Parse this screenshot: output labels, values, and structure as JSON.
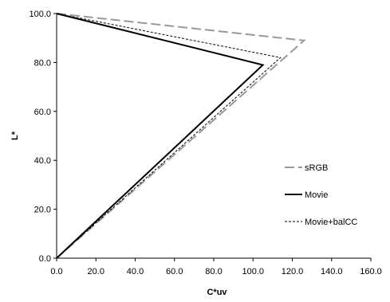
{
  "chart_data": {
    "type": "line",
    "xlabel": "C*uv",
    "ylabel": "L*",
    "xlim": [
      0,
      160
    ],
    "ylim": [
      0,
      100
    ],
    "x_ticks": [
      "0.0",
      "20.0",
      "40.0",
      "60.0",
      "80.0",
      "100.0",
      "120.0",
      "140.0",
      "160.0"
    ],
    "y_ticks": [
      "0.0",
      "20.0",
      "40.0",
      "60.0",
      "80.0",
      "100.0"
    ],
    "grid": false,
    "legend_position": "right",
    "series": [
      {
        "name": "sRGB",
        "color": "#999999",
        "style": "long-dash",
        "points": [
          [
            0,
            100
          ],
          [
            126,
            89
          ],
          [
            0,
            0
          ]
        ]
      },
      {
        "name": "Movie",
        "color": "#000000",
        "style": "solid",
        "points": [
          [
            0,
            100
          ],
          [
            105,
            79
          ],
          [
            0,
            0
          ]
        ]
      },
      {
        "name": "Movie+balCC",
        "color": "#000000",
        "style": "short-dash",
        "points": [
          [
            0,
            100
          ],
          [
            114,
            82
          ],
          [
            0,
            0
          ]
        ]
      }
    ]
  }
}
